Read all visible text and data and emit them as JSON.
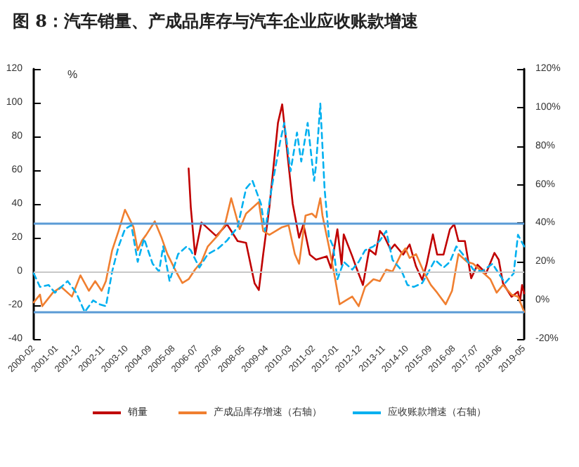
{
  "chart_data": {
    "type": "line",
    "title": "图 8：汽车销量、产成品库存与汽车企业应收账款增速",
    "ylabel": "%",
    "xlim": [
      "2000-02",
      "2019-05"
    ],
    "xticks": [
      "2000-02",
      "2001-01",
      "2001-12",
      "2002-11",
      "2003-10",
      "2004-09",
      "2005-08",
      "2006-07",
      "2007-06",
      "2008-05",
      "2009-04",
      "2010-03",
      "2011-02",
      "2012-01",
      "2012-12",
      "2013-11",
      "2014-10",
      "2015-09",
      "2016-08",
      "2017-07",
      "2018-06",
      "2019-05"
    ],
    "ylim": [
      -40,
      120
    ],
    "yticks": [
      -40,
      -20,
      0,
      20,
      40,
      60,
      80,
      100,
      120
    ],
    "y2lim": [
      -20,
      120
    ],
    "y2ticks": [
      {
        "value": -20,
        "label": "-20%"
      },
      {
        "value": 0,
        "label": "0%"
      },
      {
        "value": 20,
        "label": "20%"
      },
      {
        "value": 40,
        "label": "40%"
      },
      {
        "value": 60,
        "label": "60%"
      },
      {
        "value": 80,
        "label": "80%"
      },
      {
        "value": 100,
        "label": "100%"
      },
      {
        "value": 120,
        "label": "120%"
      }
    ],
    "grid": false,
    "legend": "bottom",
    "marker": "none",
    "ref_lines": [
      {
        "axis": "y",
        "value": 0,
        "color": "#c8c8c8"
      },
      {
        "axis": "y2",
        "value": 40,
        "color": "#5b9bd5"
      },
      {
        "axis": "y2",
        "value": -6,
        "color": "#5b9bd5"
      }
    ],
    "series": [
      {
        "name": "销量",
        "color": "#c00000",
        "line_style": "solid",
        "x": [
          "2006-03",
          "2006-04",
          "2006-06",
          "2006-09",
          "2007-04",
          "2007-09",
          "2008-02",
          "2008-06",
          "2008-10",
          "2008-12",
          "2009-02",
          "2009-05",
          "2009-09",
          "2009-11",
          "2010-02",
          "2010-04",
          "2010-07",
          "2010-09",
          "2010-12",
          "2011-03",
          "2011-08",
          "2011-10",
          "2012-01",
          "2012-03",
          "2012-04",
          "2012-08",
          "2012-10",
          "2013-01",
          "2013-04",
          "2013-07",
          "2013-09",
          "2013-11",
          "2014-02",
          "2014-04",
          "2014-08",
          "2014-11",
          "2015-02",
          "2015-05",
          "2015-07",
          "2015-10",
          "2015-12",
          "2016-03",
          "2016-06",
          "2016-08",
          "2016-10",
          "2017-01",
          "2017-04",
          "2017-07",
          "2017-11",
          "2018-03",
          "2018-05",
          "2018-07",
          "2018-11",
          "2019-02",
          "2019-03",
          "2019-04",
          "2019-05"
        ],
        "values": [
          61,
          38,
          10,
          29,
          21,
          28,
          18,
          17,
          -7,
          -11,
          10,
          38,
          88,
          99,
          63,
          40,
          20,
          28,
          10,
          7,
          9,
          2,
          25,
          4,
          22,
          9,
          2,
          -8,
          13,
          10,
          24,
          21,
          13,
          16,
          10,
          16,
          3,
          -5,
          4,
          22,
          10,
          10,
          25,
          28,
          18,
          18,
          -4,
          4,
          -1,
          11,
          7,
          -7,
          -15,
          -12,
          -18,
          -8,
          -13
        ]
      },
      {
        "name": "产成品库存增速（右轴）",
        "color": "#f07f30",
        "line_style": "solid",
        "axis": "y2",
        "x": [
          "2000-02",
          "2000-05",
          "2000-06",
          "2000-11",
          "2001-03",
          "2001-08",
          "2001-12",
          "2002-04",
          "2002-07",
          "2002-10",
          "2002-12",
          "2003-03",
          "2003-06",
          "2003-09",
          "2004-01",
          "2004-03",
          "2004-05",
          "2004-07",
          "2004-11",
          "2005-02",
          "2005-05",
          "2005-09",
          "2005-12",
          "2006-03",
          "2006-06",
          "2006-09",
          "2006-12",
          "2007-05",
          "2007-08",
          "2007-11",
          "2008-03",
          "2008-06",
          "2008-12",
          "2009-02",
          "2009-05",
          "2009-11",
          "2010-02",
          "2010-05",
          "2010-07",
          "2010-10",
          "2011-01",
          "2011-03",
          "2011-05",
          "2011-06",
          "2011-09",
          "2011-12",
          "2012-02",
          "2012-05",
          "2012-08",
          "2012-11",
          "2013-02",
          "2013-06",
          "2013-09",
          "2013-12",
          "2014-03",
          "2014-07",
          "2014-09",
          "2014-11",
          "2015-02",
          "2015-06",
          "2015-09",
          "2015-12",
          "2016-04",
          "2016-07",
          "2016-10",
          "2017-02",
          "2017-05",
          "2017-08",
          "2018-01",
          "2018-04",
          "2018-07",
          "2018-11",
          "2019-02",
          "2019-05"
        ],
        "values": [
          -1,
          3,
          -3,
          4,
          7,
          2,
          13,
          5,
          10,
          5,
          10,
          26,
          36,
          47,
          38,
          26,
          31,
          34,
          41,
          33,
          24,
          15,
          9,
          11,
          16,
          20,
          28,
          34,
          39,
          53,
          37,
          45,
          51,
          36,
          34,
          38,
          39,
          24,
          19,
          44,
          45,
          43,
          53,
          44,
          28,
          11,
          -2,
          0,
          2,
          -3,
          7,
          11,
          10,
          16,
          15,
          24,
          27,
          22,
          24,
          14,
          8,
          4,
          -2,
          5,
          24,
          20,
          19,
          16,
          11,
          4,
          8,
          3,
          2,
          -6
        ]
      },
      {
        "name": "应收账款增速（右轴）",
        "color": "#00b0f0",
        "line_style": "dashed",
        "axis": "y2",
        "x": [
          "2000-02",
          "2000-05",
          "2000-09",
          "2000-12",
          "2001-06",
          "2001-10",
          "2002-02",
          "2002-06",
          "2002-09",
          "2002-12",
          "2003-03",
          "2003-06",
          "2003-09",
          "2003-12",
          "2004-03",
          "2004-06",
          "2004-10",
          "2005-01",
          "2005-03",
          "2005-06",
          "2005-10",
          "2006-02",
          "2006-04",
          "2006-08",
          "2006-12",
          "2007-05",
          "2007-09",
          "2008-02",
          "2008-06",
          "2008-09",
          "2009-01",
          "2009-03",
          "2009-06",
          "2009-10",
          "2009-12",
          "2010-03",
          "2010-06",
          "2010-08",
          "2010-11",
          "2011-02",
          "2011-03",
          "2011-05",
          "2011-07",
          "2011-09",
          "2011-11",
          "2012-01",
          "2012-04",
          "2012-08",
          "2012-11",
          "2013-02",
          "2013-06",
          "2013-09",
          "2013-12",
          "2014-03",
          "2014-07",
          "2014-10",
          "2015-01",
          "2015-05",
          "2015-08",
          "2015-11",
          "2016-03",
          "2016-06",
          "2016-09",
          "2016-12",
          "2017-05",
          "2017-09",
          "2018-02",
          "2018-05",
          "2018-08",
          "2018-12",
          "2019-02",
          "2019-04",
          "2019-05"
        ],
        "values": [
          14,
          7,
          8,
          4,
          10,
          4,
          -6,
          0,
          -2,
          -3,
          15,
          28,
          37,
          39,
          20,
          32,
          19,
          15,
          28,
          10,
          24,
          28,
          26,
          17,
          24,
          27,
          31,
          38,
          58,
          62,
          50,
          36,
          58,
          82,
          92,
          67,
          87,
          72,
          92,
          62,
          70,
          102,
          58,
          33,
          28,
          11,
          20,
          16,
          20,
          26,
          28,
          31,
          36,
          21,
          16,
          8,
          7,
          9,
          15,
          21,
          17,
          20,
          28,
          24,
          16,
          15,
          19,
          14,
          9,
          14,
          34,
          30,
          28
        ]
      }
    ]
  }
}
